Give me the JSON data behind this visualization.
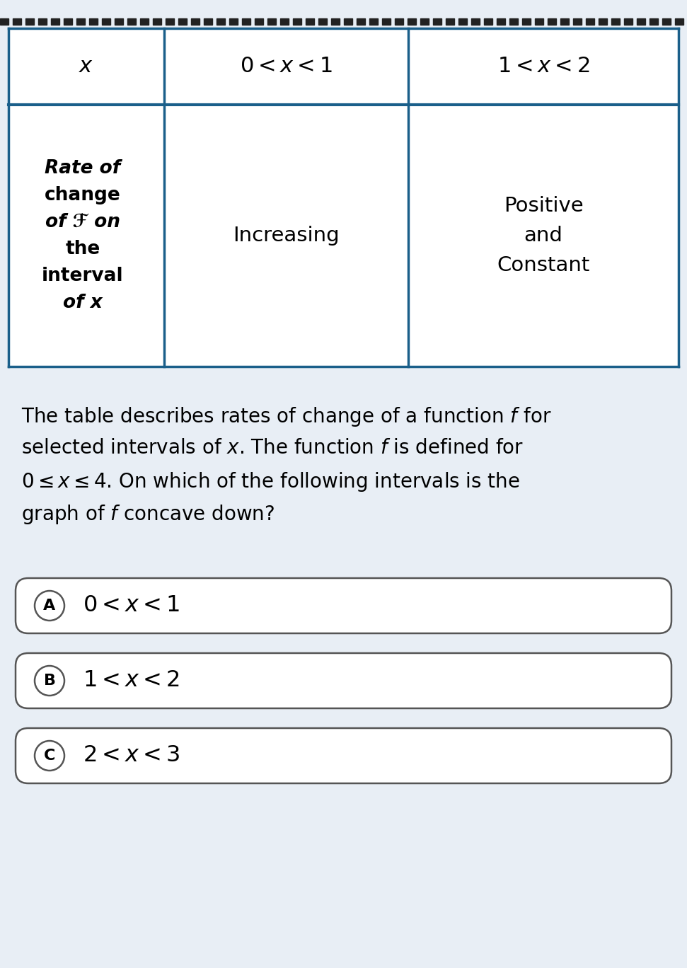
{
  "bg_color": "#e8eef5",
  "table_bg": "#ffffff",
  "table_border_color": "#1a5f8a",
  "dashed_color": "#222222",
  "col0_lines": [
    "Rate of",
    "change",
    "of ℱ on",
    "the",
    "interval",
    "of x"
  ],
  "col0_bold": [
    true,
    true,
    true,
    true,
    true,
    true
  ],
  "col1_text": "Increasing",
  "col2_lines": [
    "Positive",
    "and",
    "Constant"
  ],
  "question_lines": [
    "The table describes rates of change of a function ℱ for",
    "selected intervals of x. The function ℱ is defined for",
    "0 ≤ x ≤ 4. On which of the following intervals is the",
    "graph of ℱ concave down?"
  ],
  "choices": [
    {
      "label": "A",
      "text": "0 < x < 1"
    },
    {
      "label": "B",
      "text": "1 < x < 2"
    },
    {
      "label": "C",
      "text": "2 < x < 3"
    }
  ],
  "choice_border_color": "#555555",
  "choice_bg": "#ffffff"
}
